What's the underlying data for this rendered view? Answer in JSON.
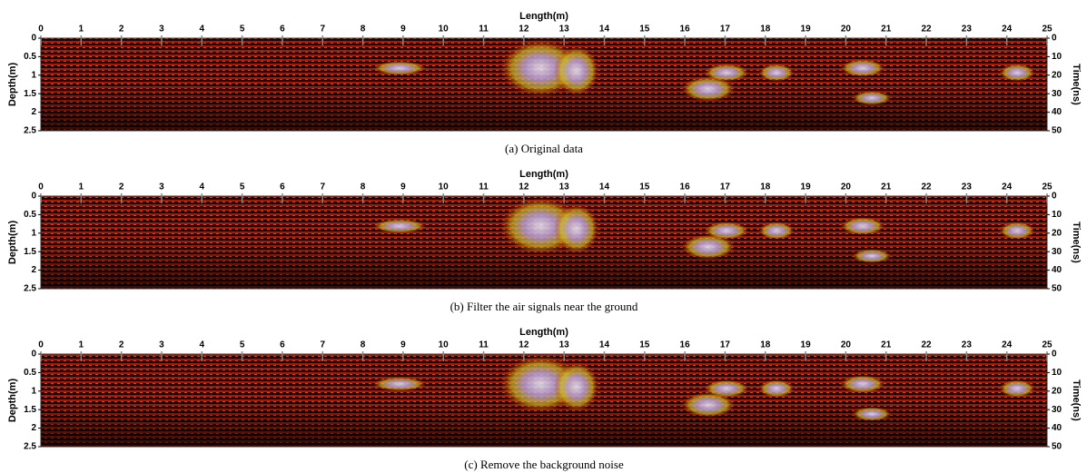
{
  "chart_data": [
    {
      "type": "image",
      "xlabel": "Length(m)",
      "ylabel": "Depth(m)",
      "y2label": "Time(ns)",
      "caption": "(a) Original data",
      "xlim": [
        0,
        25
      ],
      "xticks": [
        0,
        1,
        2,
        3,
        4,
        5,
        6,
        7,
        8,
        9,
        10,
        11,
        12,
        13,
        14,
        15,
        16,
        17,
        18,
        19,
        20,
        21,
        22,
        23,
        24,
        25
      ],
      "ylim": [
        0,
        2.5
      ],
      "yticks": [
        0,
        0.5,
        1,
        1.5,
        2,
        2.5
      ],
      "y2lim": [
        0,
        50
      ],
      "y2ticks": [
        0,
        10,
        20,
        30,
        40,
        50
      ]
    },
    {
      "type": "image",
      "xlabel": "Length(m)",
      "ylabel": "Depth(m)",
      "y2label": "Time(ns)",
      "caption": "(b) Filter the air signals near the ground",
      "xlim": [
        0,
        25
      ],
      "xticks": [
        0,
        1,
        2,
        3,
        4,
        5,
        6,
        7,
        8,
        9,
        10,
        11,
        12,
        13,
        14,
        15,
        16,
        17,
        18,
        19,
        20,
        21,
        22,
        23,
        24,
        25
      ],
      "ylim": [
        0,
        2.5
      ],
      "yticks": [
        0,
        0.5,
        1,
        1.5,
        2,
        2.5
      ],
      "y2lim": [
        0,
        50
      ],
      "y2ticks": [
        0,
        10,
        20,
        30,
        40,
        50
      ]
    },
    {
      "type": "image",
      "xlabel": "Length(m)",
      "ylabel": "Depth(m)",
      "y2label": "Time(ns)",
      "caption": "(c) Remove the background noise",
      "xlim": [
        0,
        25
      ],
      "xticks": [
        0,
        1,
        2,
        3,
        4,
        5,
        6,
        7,
        8,
        9,
        10,
        11,
        12,
        13,
        14,
        15,
        16,
        17,
        18,
        19,
        20,
        21,
        22,
        23,
        24,
        25
      ],
      "ylim": [
        0,
        2.5
      ],
      "yticks": [
        0,
        0.5,
        1,
        1.5,
        2,
        2.5
      ],
      "y2lim": [
        0,
        50
      ],
      "y2ticks": [
        0,
        10,
        20,
        30,
        40,
        50
      ]
    }
  ]
}
